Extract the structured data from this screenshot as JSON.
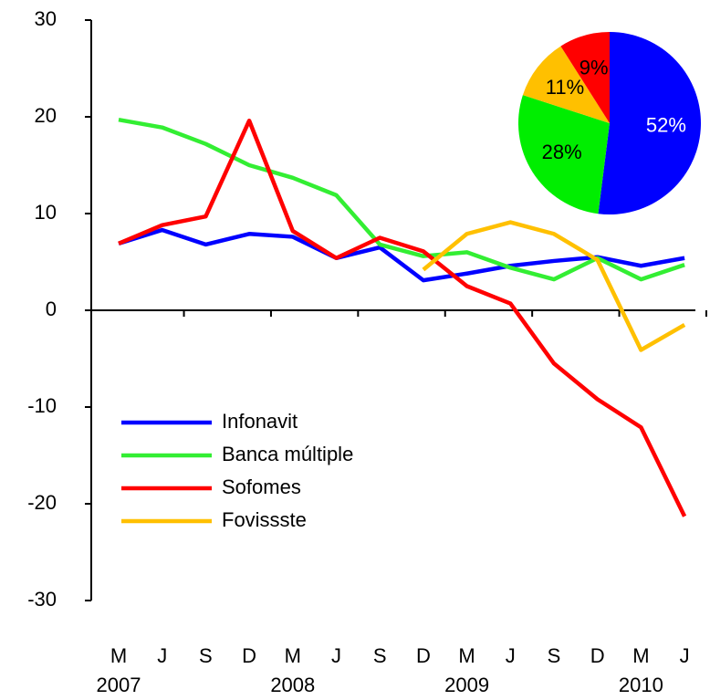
{
  "chart_data": [
    {
      "type": "line",
      "categories": [
        "M",
        "J",
        "S",
        "D",
        "M",
        "J",
        "S",
        "D",
        "M",
        "J",
        "S",
        "D",
        "M",
        "J"
      ],
      "years": [
        "2007",
        null,
        null,
        null,
        "2008",
        null,
        null,
        null,
        "2009",
        null,
        null,
        null,
        "2010",
        null
      ],
      "series": [
        {
          "name": "Infonavit",
          "color": "#0000ff",
          "values": [
            6.9,
            8.3,
            6.8,
            7.9,
            7.6,
            5.4,
            6.5,
            3.1,
            3.8,
            4.6,
            5.1,
            5.5,
            4.6,
            5.4
          ]
        },
        {
          "name": "Banca múltiple",
          "color": "#33ee33",
          "values": [
            19.7,
            18.9,
            17.2,
            15.0,
            13.7,
            11.9,
            6.8,
            5.6,
            6.0,
            4.4,
            3.2,
            5.4,
            3.2,
            4.7
          ]
        },
        {
          "name": "Sofomes",
          "color": "#ff0000",
          "values": [
            6.9,
            8.8,
            9.7,
            19.6,
            8.2,
            5.4,
            7.5,
            6.1,
            2.5,
            0.7,
            -5.5,
            -9.2,
            -12.1,
            -21.3
          ]
        },
        {
          "name": "Fovissste",
          "color": "#ffc000",
          "values": [
            null,
            null,
            null,
            null,
            null,
            null,
            null,
            4.2,
            7.9,
            9.1,
            7.9,
            5.2,
            -4.1,
            -1.5
          ]
        }
      ],
      "ylim": [
        -30,
        30
      ],
      "yticks": [
        30,
        20,
        10,
        0,
        -10,
        -20,
        -30
      ],
      "legend": "lower left"
    },
    {
      "type": "pie",
      "values": [
        52,
        28,
        11,
        9
      ],
      "value_labels": [
        "52%",
        "28%",
        "11%",
        "9%"
      ],
      "colors": [
        "#0000ff",
        "#00ee00",
        "#ffc000",
        "#ff0000"
      ],
      "label_colors": [
        "#ffffff",
        "#000000",
        "#000000",
        "#000000"
      ]
    }
  ]
}
